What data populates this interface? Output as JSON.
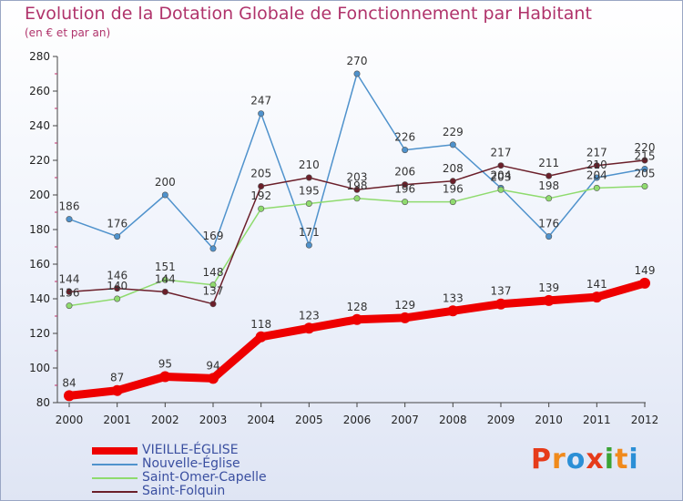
{
  "chart_data": {
    "type": "line",
    "title": "Evolution de la Dotation Globale de Fonctionnement par Habitant",
    "subtitle": "(en € et par an)",
    "x": [
      "2000",
      "2001",
      "2002",
      "2003",
      "2004",
      "2005",
      "2006",
      "2007",
      "2008",
      "2009",
      "2010",
      "2011",
      "2012"
    ],
    "ylim": [
      80,
      280
    ],
    "yticks": [
      80,
      100,
      120,
      140,
      160,
      180,
      200,
      220,
      240,
      260,
      280
    ],
    "grid": false,
    "legend_position": "bottom-left",
    "series": [
      {
        "name": "VIEILLE-ÉGLISE",
        "color": "#ee0000",
        "values": [
          84,
          87,
          95,
          94,
          118,
          123,
          128,
          129,
          133,
          137,
          139,
          141,
          149
        ]
      },
      {
        "name": "Nouvelle-Église",
        "color": "#4f92cc",
        "values": [
          186,
          176,
          200,
          169,
          247,
          171,
          270,
          226,
          229,
          204,
          176,
          210,
          215
        ]
      },
      {
        "name": "Saint-Omer-Capelle",
        "color": "#8fdb6e",
        "values": [
          136,
          140,
          151,
          148,
          192,
          195,
          198,
          196,
          196,
          203,
          198,
          204,
          205
        ]
      },
      {
        "name": "Saint-Folquin",
        "color": "#6b1f2a",
        "values": [
          144,
          146,
          144,
          137,
          205,
          210,
          203,
          206,
          208,
          217,
          211,
          217,
          220
        ]
      }
    ]
  },
  "brand": {
    "text": "Proxiti",
    "letters": [
      {
        "ch": "P",
        "color": "#e63b1a"
      },
      {
        "ch": "r",
        "color": "#f08a1c"
      },
      {
        "ch": "o",
        "color": "#2b8fd6"
      },
      {
        "ch": "x",
        "color": "#e63b1a"
      },
      {
        "ch": "i",
        "color": "#3aa335"
      },
      {
        "ch": "t",
        "color": "#f08a1c"
      },
      {
        "ch": "i",
        "color": "#2b8fd6"
      }
    ]
  }
}
